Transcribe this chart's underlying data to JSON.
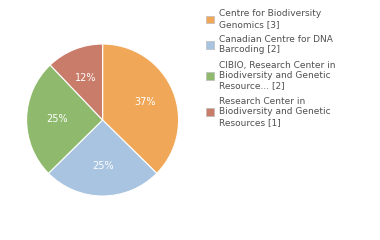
{
  "labels": [
    "Centre for Biodiversity\nGenomics [3]",
    "Canadian Centre for DNA\nBarcoding [2]",
    "CIBIO, Research Center in\nBiodiversity and Genetic\nResource... [2]",
    "Research Center in\nBiodiversity and Genetic\nResources [1]"
  ],
  "values": [
    37,
    25,
    25,
    12
  ],
  "colors": [
    "#f0a858",
    "#a8c4e0",
    "#8fba6e",
    "#c97c6a"
  ],
  "pct_labels": [
    "37%",
    "25%",
    "25%",
    "12%"
  ],
  "startangle": 90,
  "background_color": "#ffffff",
  "text_color": "#505050",
  "fontsize": 7.0,
  "legend_fontsize": 6.5
}
